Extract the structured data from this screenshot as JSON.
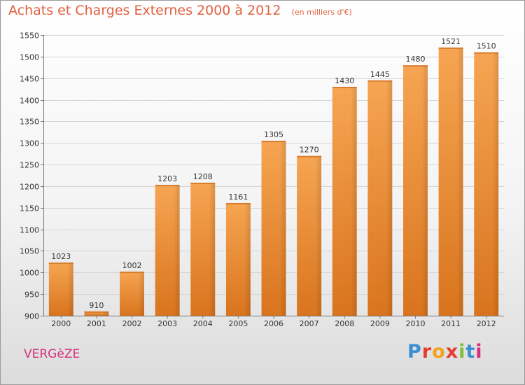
{
  "header": {
    "title": "Achats et Charges Externes 2000 à 2012",
    "subtitle": "(en milliers d'€)"
  },
  "footer": {
    "town": "VERGèZE",
    "brand": "Proxiti"
  },
  "colors": {
    "bar": "#f08e32",
    "title": "#e0613f",
    "town": "#d6307a"
  },
  "chart_data": {
    "type": "bar",
    "title": "Achats et Charges Externes 2000 à 2012",
    "subtitle": "(en milliers d'€)",
    "categories": [
      "2000",
      "2001",
      "2002",
      "2003",
      "2004",
      "2005",
      "2006",
      "2007",
      "2008",
      "2009",
      "2010",
      "2011",
      "2012"
    ],
    "values": [
      1023,
      910,
      1002,
      1203,
      1208,
      1161,
      1305,
      1270,
      1430,
      1445,
      1480,
      1521,
      1510
    ],
    "ylim": [
      900,
      1550
    ],
    "yticks": [
      900,
      950,
      1000,
      1050,
      1100,
      1150,
      1200,
      1250,
      1300,
      1350,
      1400,
      1450,
      1500,
      1550
    ],
    "grid": true
  }
}
